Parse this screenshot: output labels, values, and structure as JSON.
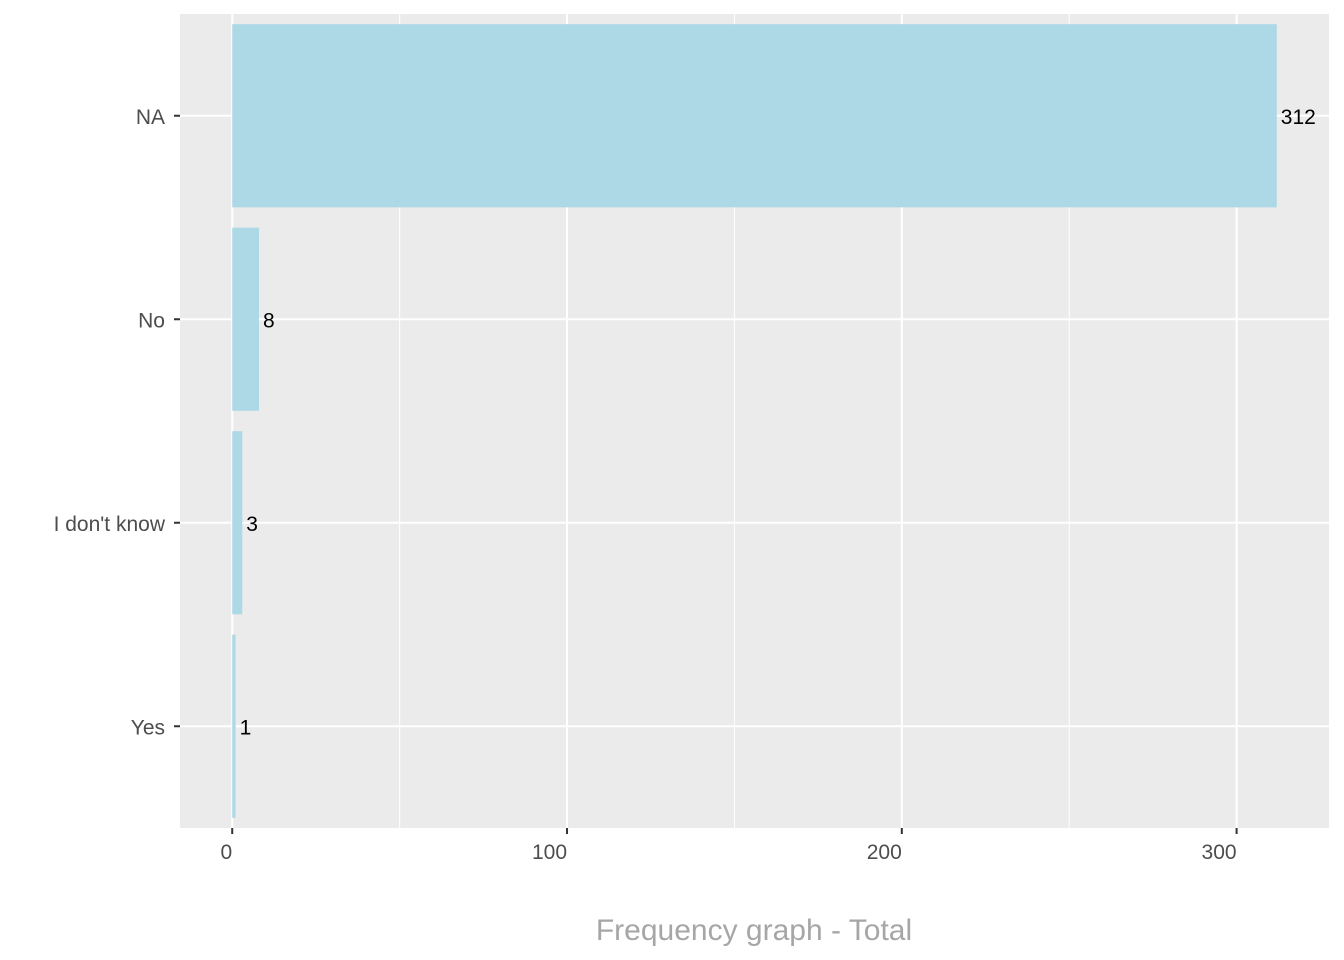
{
  "chart_data": {
    "type": "bar",
    "orientation": "horizontal",
    "categories": [
      "NA",
      "No",
      "I don't know",
      "Yes"
    ],
    "values": [
      312,
      8,
      3,
      1
    ],
    "data_labels": [
      "312",
      "8",
      "3",
      "1"
    ],
    "title": "Frequency graph - Total",
    "xlabel": "",
    "ylabel": "",
    "xlim": [
      -15.6,
      327.6
    ],
    "x_ticks": [
      0,
      100,
      200,
      300
    ],
    "x_tick_labels": [
      "0",
      "100",
      "200",
      "300"
    ],
    "grid": true,
    "legend": "none",
    "colors": {
      "bar": "#ADD8E6",
      "panel": "#EBEBEB",
      "grid": "#FFFFFF",
      "title": "#A6A6A6",
      "axis_text": "#4D4D4D"
    }
  }
}
